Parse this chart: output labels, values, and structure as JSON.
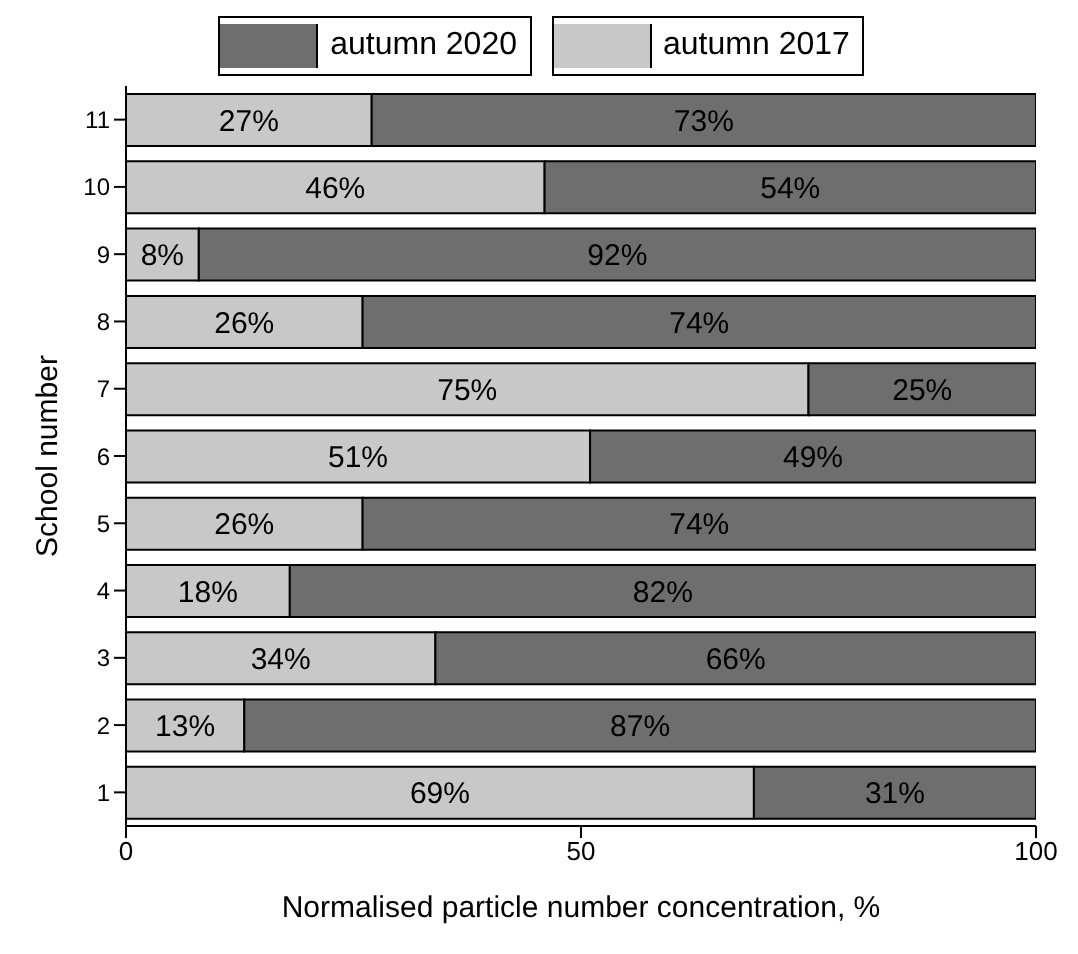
{
  "chart_data": {
    "type": "bar",
    "orientation": "horizontal",
    "stacked": true,
    "xlabel": "Normalised particle number concentration, %",
    "ylabel": "School number",
    "categories": [
      "11",
      "10",
      "9",
      "8",
      "7",
      "6",
      "5",
      "4",
      "3",
      "2",
      "1"
    ],
    "series": [
      {
        "name": "autumn 2017",
        "color": "#c8c8c8",
        "values": [
          27,
          46,
          8,
          26,
          75,
          51,
          26,
          18,
          34,
          13,
          69
        ],
        "value_labels": [
          "27%",
          "46%",
          "8%",
          "26%",
          "75%",
          "51%",
          "26%",
          "18%",
          "34%",
          "13%",
          "69%"
        ]
      },
      {
        "name": "autumn 2020",
        "color": "#6e6e6e",
        "values": [
          73,
          54,
          92,
          74,
          25,
          49,
          74,
          82,
          66,
          87,
          31
        ],
        "value_labels": [
          "73%",
          "54%",
          "92%",
          "74%",
          "25%",
          "49%",
          "74%",
          "82%",
          "66%",
          "87%",
          "31%"
        ]
      }
    ],
    "xlim": [
      0,
      100
    ],
    "xticks": [
      0,
      50,
      100
    ],
    "legend": "top"
  }
}
